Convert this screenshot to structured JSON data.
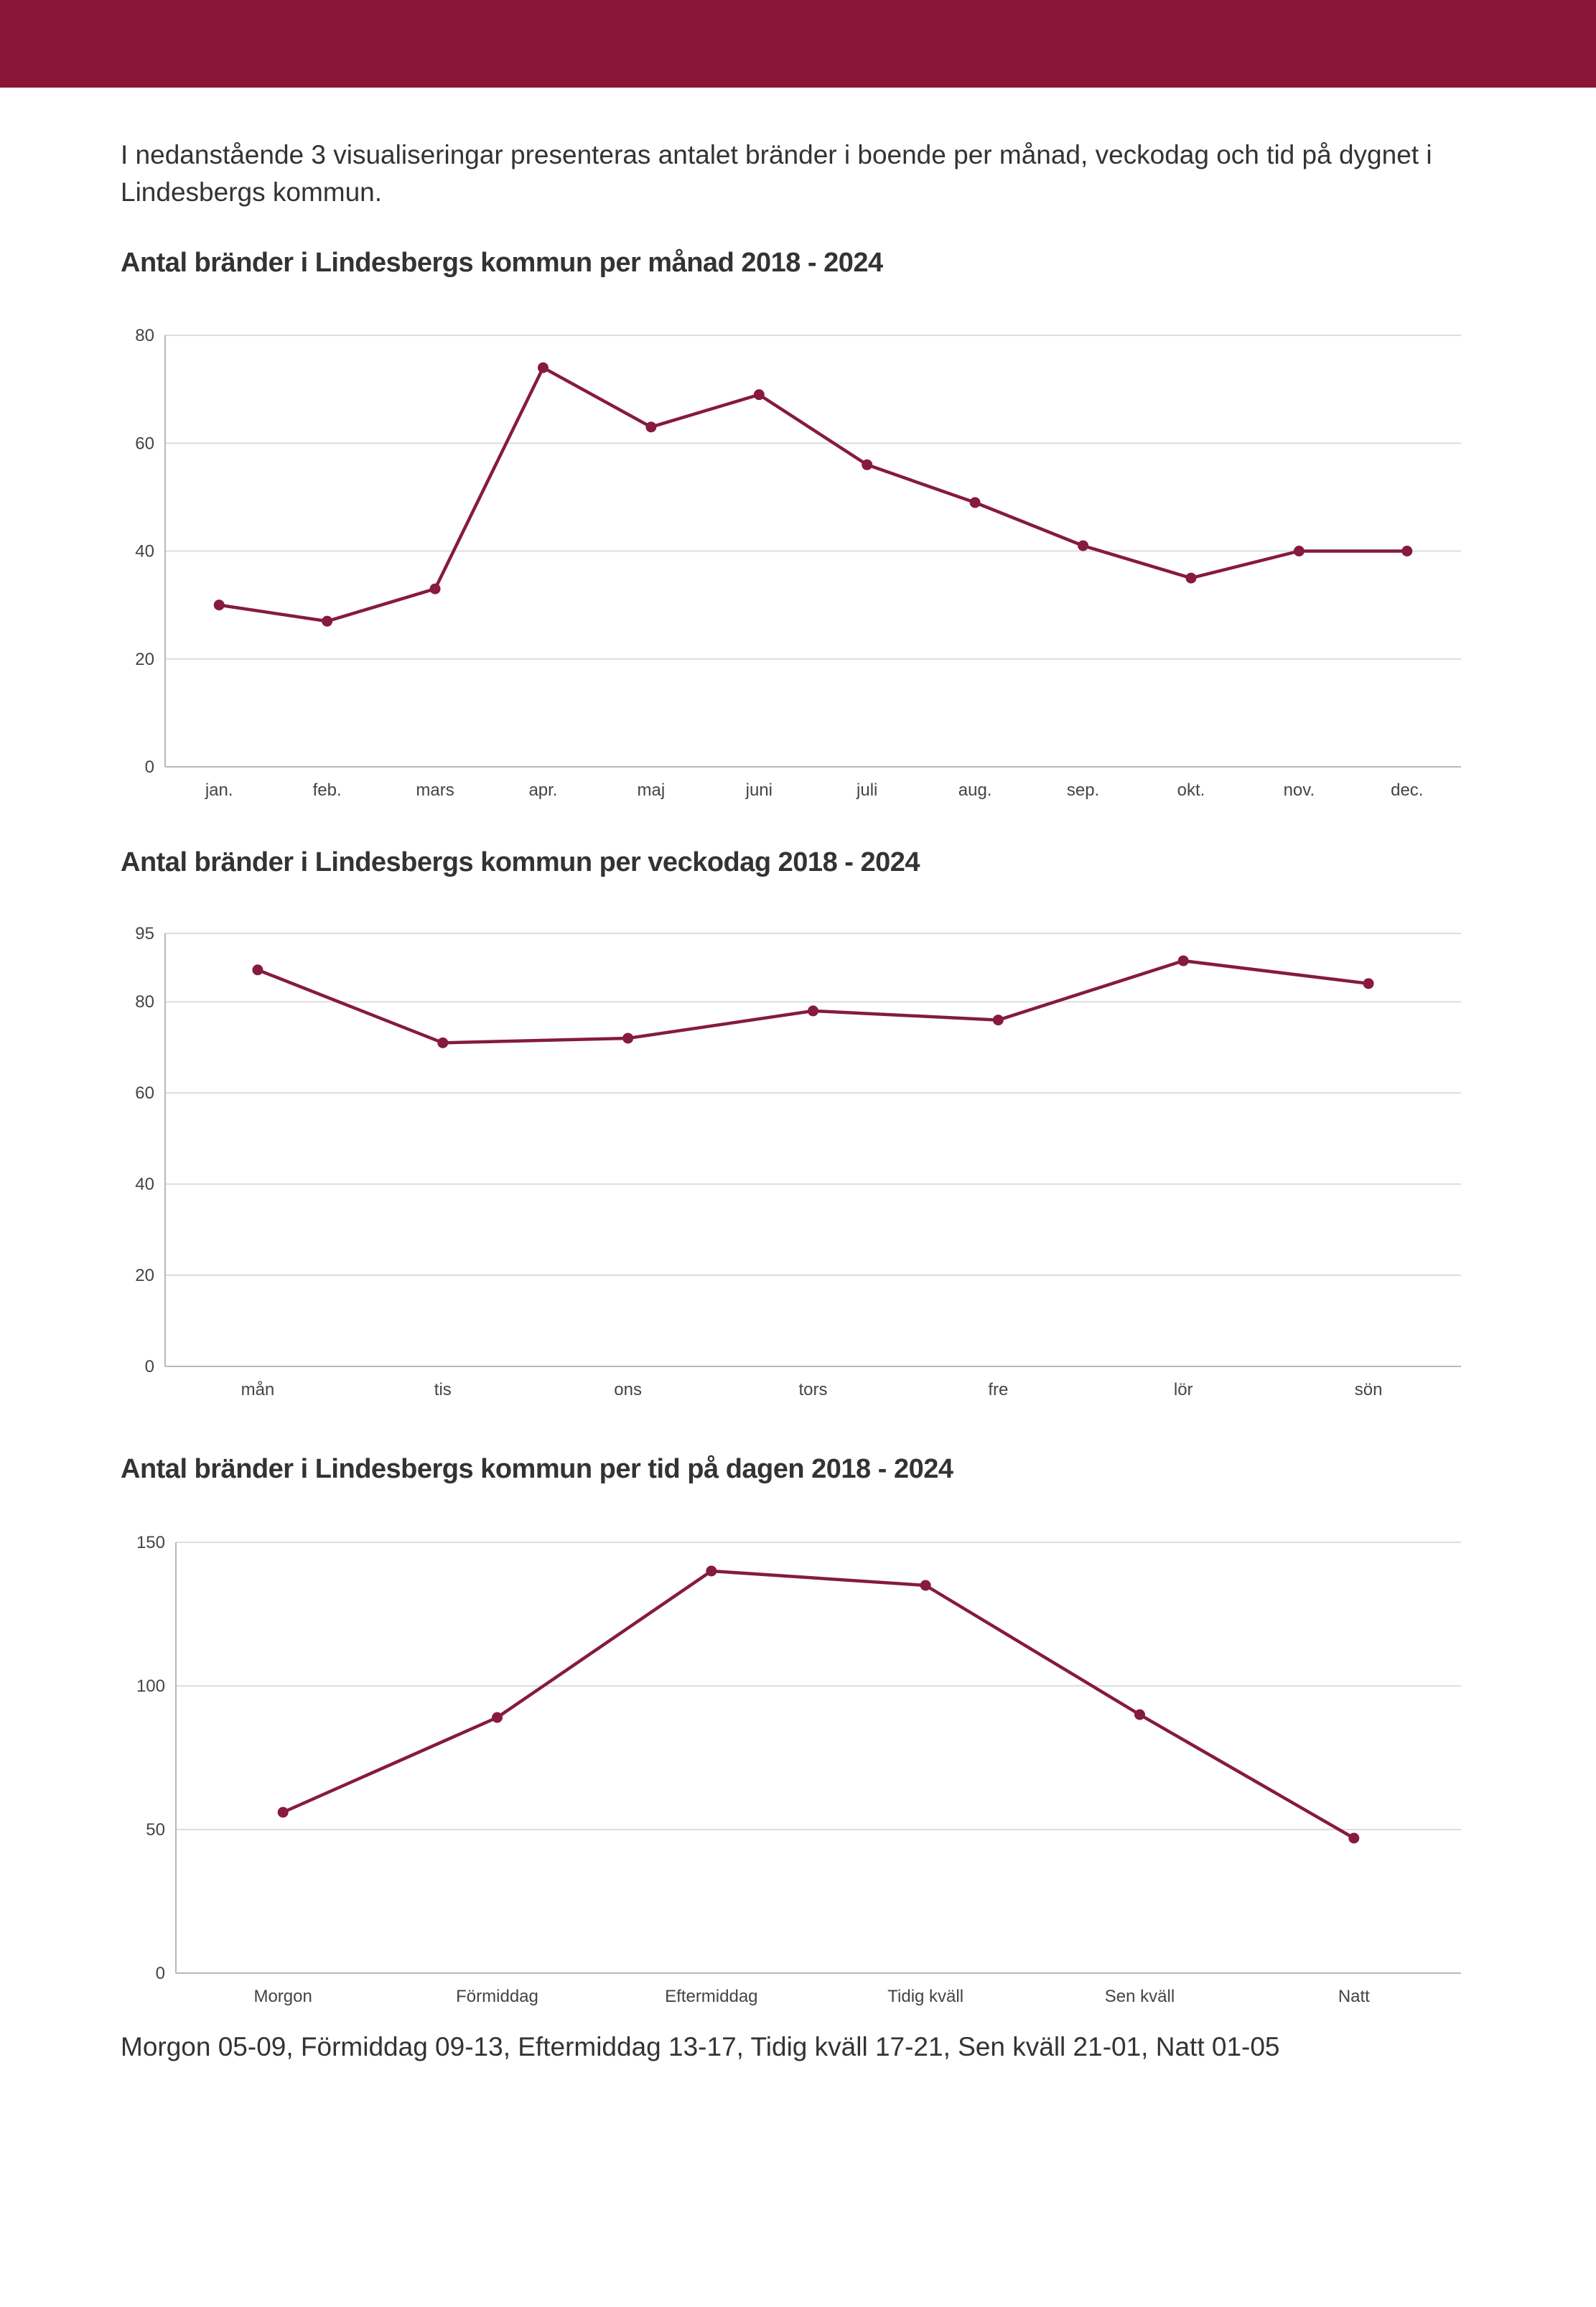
{
  "colors": {
    "brand": "#8b1538",
    "series": "#861a3f",
    "grid": "#dddddd"
  },
  "intro": "I nedanstående 3 visualiseringar presenteras antalet bränder i boende per månad, veckodag och tid på dygnet i Lindesbergs kommun.",
  "footnote": "Morgon 05-09, Förmiddag 09-13, Eftermiddag 13-17, Tidig kväll 17-21, Sen kväll 21-01, Natt 01-05",
  "chart_data": [
    {
      "type": "line",
      "title": "Antal bränder i Lindesbergs kommun per månad 2018 - 2024",
      "categories": [
        "jan.",
        "feb.",
        "mars",
        "apr.",
        "maj",
        "juni",
        "juli",
        "aug.",
        "sep.",
        "okt.",
        "nov.",
        "dec."
      ],
      "values": [
        30,
        27,
        33,
        74,
        63,
        69,
        56,
        49,
        41,
        35,
        40,
        40
      ],
      "yticks": [
        0,
        20,
        40,
        60,
        80
      ],
      "ylim": [
        0,
        80
      ],
      "xlabel": "",
      "ylabel": "",
      "grid": true
    },
    {
      "type": "line",
      "title": "Antal bränder i Lindesbergs kommun per veckodag 2018 - 2024",
      "categories": [
        "mån",
        "tis",
        "ons",
        "tors",
        "fre",
        "lör",
        "sön"
      ],
      "values": [
        87,
        71,
        72,
        78,
        76,
        89,
        84
      ],
      "yticks": [
        0,
        20,
        40,
        60,
        80,
        95
      ],
      "ylim": [
        0,
        95
      ],
      "xlabel": "",
      "ylabel": "",
      "grid": true
    },
    {
      "type": "line",
      "title": "Antal bränder i Lindesbergs kommun per tid på dagen 2018 - 2024",
      "categories": [
        "Morgon",
        "Förmiddag",
        "Eftermiddag",
        "Tidig kväll",
        "Sen kväll",
        "Natt"
      ],
      "values": [
        56,
        89,
        140,
        135,
        90,
        47
      ],
      "yticks": [
        0,
        50,
        100,
        150
      ],
      "ylim": [
        0,
        150
      ],
      "xlabel": "",
      "ylabel": "",
      "grid": true
    }
  ]
}
